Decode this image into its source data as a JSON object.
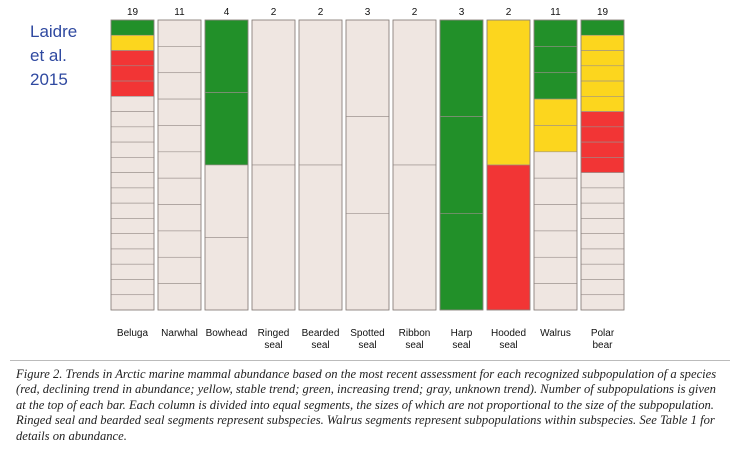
{
  "note": {
    "lines": [
      "Laidre",
      "et al.",
      "2015"
    ]
  },
  "colors": {
    "declining": "#f23535",
    "stable": "#fcd61e",
    "increasing": "#229029",
    "unknown": "#efe6e1",
    "segment_border": "#9a908c"
  },
  "chart_data": {
    "type": "bar",
    "categories": [
      [
        "Beluga"
      ],
      [
        "Narwhal"
      ],
      [
        "Bowhead"
      ],
      [
        "Ringed",
        "seal"
      ],
      [
        "Bearded",
        "seal"
      ],
      [
        "Spotted",
        "seal"
      ],
      [
        "Ribbon",
        "seal"
      ],
      [
        "Harp",
        "seal"
      ],
      [
        "Hooded",
        "seal"
      ],
      [
        "Walrus"
      ],
      [
        "Polar",
        "bear"
      ]
    ],
    "totals": [
      19,
      11,
      4,
      2,
      2,
      3,
      2,
      3,
      2,
      11,
      19
    ],
    "segments": [
      [
        "increasing",
        "stable",
        "declining",
        "declining",
        "declining",
        "unknown",
        "unknown",
        "unknown",
        "unknown",
        "unknown",
        "unknown",
        "unknown",
        "unknown",
        "unknown",
        "unknown",
        "unknown",
        "unknown",
        "unknown",
        "unknown"
      ],
      [
        "unknown",
        "unknown",
        "unknown",
        "unknown",
        "unknown",
        "unknown",
        "unknown",
        "unknown",
        "unknown",
        "unknown",
        "unknown"
      ],
      [
        "increasing",
        "increasing",
        "unknown",
        "unknown"
      ],
      [
        "unknown",
        "unknown"
      ],
      [
        "unknown",
        "unknown"
      ],
      [
        "unknown",
        "unknown",
        "unknown"
      ],
      [
        "unknown",
        "unknown"
      ],
      [
        "increasing",
        "increasing",
        "increasing"
      ],
      [
        "stable",
        "declining"
      ],
      [
        "increasing",
        "increasing",
        "increasing",
        "stable",
        "stable",
        "unknown",
        "unknown",
        "unknown",
        "unknown",
        "unknown",
        "unknown"
      ],
      [
        "increasing",
        "stable",
        "stable",
        "stable",
        "stable",
        "stable",
        "declining",
        "declining",
        "declining",
        "declining",
        "unknown",
        "unknown",
        "unknown",
        "unknown",
        "unknown",
        "unknown",
        "unknown",
        "unknown",
        "unknown"
      ]
    ]
  },
  "caption": "Figure 2. Trends in Arctic marine mammal abundance based on the most recent assessment for each recognized subpopulation of a species (red, declining trend in abundance; yellow, stable trend; green, increasing trend; gray, unknown trend). Number of subpopulations is given at the top of each bar. Each column is divided into equal segments, the sizes of which are not proportional to the size of the subpopulation. Ringed seal and bearded seal segments represent subspecies. Walrus segments represent subpopulations within subspecies. See Table 1 for details on abundance."
}
